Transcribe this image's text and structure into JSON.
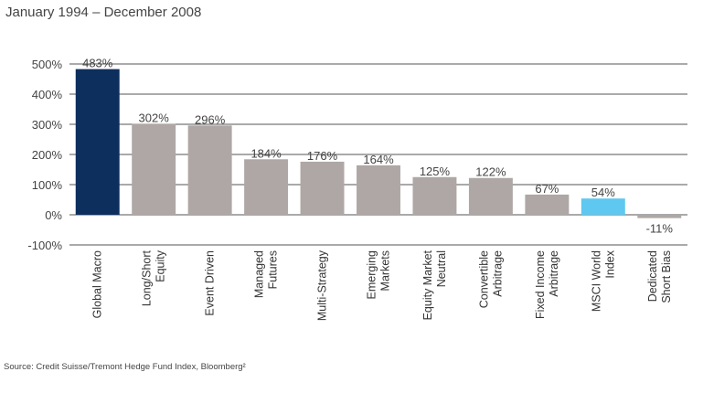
{
  "subtitle": "January 1994 – December 2008",
  "source": "Source: Credit Suisse/Tremont Hedge Fund Index, Bloomberg²",
  "colors": {
    "highlight": "#0d2f5e",
    "default": "#aea7a5",
    "benchmark": "#5ec8f0",
    "grid": "#555555"
  },
  "chart_data": {
    "type": "bar",
    "title": "",
    "xlabel": "",
    "ylabel": "",
    "ylim": [
      -100,
      500
    ],
    "yticks": [
      -100,
      0,
      100,
      200,
      300,
      400,
      500
    ],
    "ytick_labels": [
      "-100%",
      "0%",
      "100%",
      "200%",
      "300%",
      "400%",
      "500%"
    ],
    "grid": true,
    "categories": [
      [
        "Global Macro"
      ],
      [
        "Long/Short",
        "Equity"
      ],
      [
        "Event Driven"
      ],
      [
        "Managed",
        "Futures"
      ],
      [
        "Multi-Strategy"
      ],
      [
        "Emerging",
        "Markets"
      ],
      [
        "Equity Market",
        "Neutral"
      ],
      [
        "Convertible",
        "Arbitrage"
      ],
      [
        "Fixed Income",
        "Arbitrage"
      ],
      [
        "MSCI World",
        "Index"
      ],
      [
        "Dedicated",
        "Short Bias"
      ]
    ],
    "values": [
      483,
      302,
      296,
      184,
      176,
      164,
      125,
      122,
      67,
      54,
      -11
    ],
    "value_labels": [
      "483%",
      "302%",
      "296%",
      "184%",
      "176%",
      "164%",
      "125%",
      "122%",
      "67%",
      "54%",
      "-11%"
    ],
    "bar_colors": [
      "highlight",
      "default",
      "default",
      "default",
      "default",
      "default",
      "default",
      "default",
      "default",
      "benchmark",
      "default"
    ]
  }
}
